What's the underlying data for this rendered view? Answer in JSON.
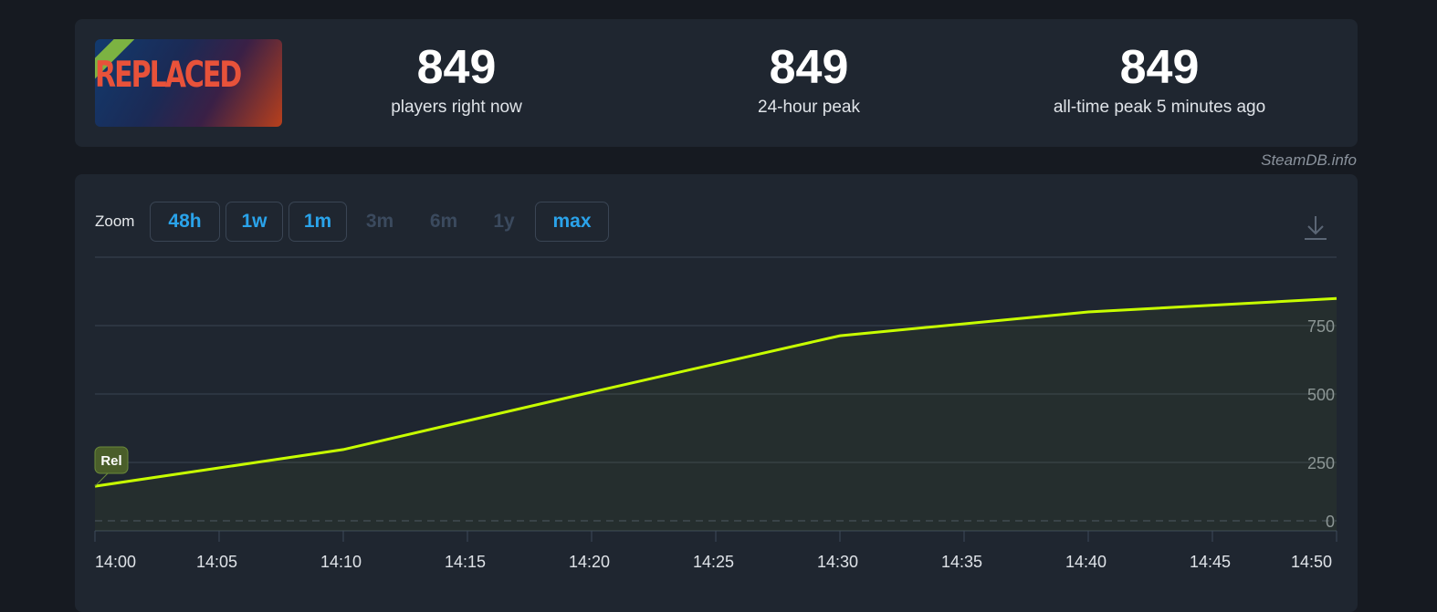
{
  "game": {
    "capsule_text": "REPLACED"
  },
  "stats": [
    {
      "value": "849",
      "label": "players right now"
    },
    {
      "value": "849",
      "label": "24-hour peak"
    },
    {
      "value": "849",
      "label": "all-time peak 5 minutes ago"
    }
  ],
  "source": "SteamDB.info",
  "zoom": {
    "label": "Zoom",
    "buttons": [
      {
        "label": "48h",
        "enabled": true
      },
      {
        "label": "1w",
        "enabled": true
      },
      {
        "label": "1m",
        "enabled": true
      },
      {
        "label": "3m",
        "enabled": false
      },
      {
        "label": "6m",
        "enabled": false
      },
      {
        "label": "1y",
        "enabled": false
      },
      {
        "label": "max",
        "enabled": true
      }
    ]
  },
  "chart_data": {
    "type": "area",
    "x": [
      "14:00",
      "14:10",
      "14:20",
      "14:30",
      "14:40",
      "14:50"
    ],
    "values": [
      163,
      297,
      507,
      713,
      800,
      849
    ],
    "x_ticks": [
      "14:00",
      "14:05",
      "14:10",
      "14:15",
      "14:20",
      "14:25",
      "14:30",
      "14:35",
      "14:40",
      "14:45",
      "14:50"
    ],
    "y_ticks": [
      "0",
      "250",
      "500",
      "750"
    ],
    "ylim": [
      0,
      1000
    ],
    "grid": true,
    "line_color": "#c8ff00",
    "flag": {
      "label": "Rel",
      "x": "14:00"
    }
  }
}
